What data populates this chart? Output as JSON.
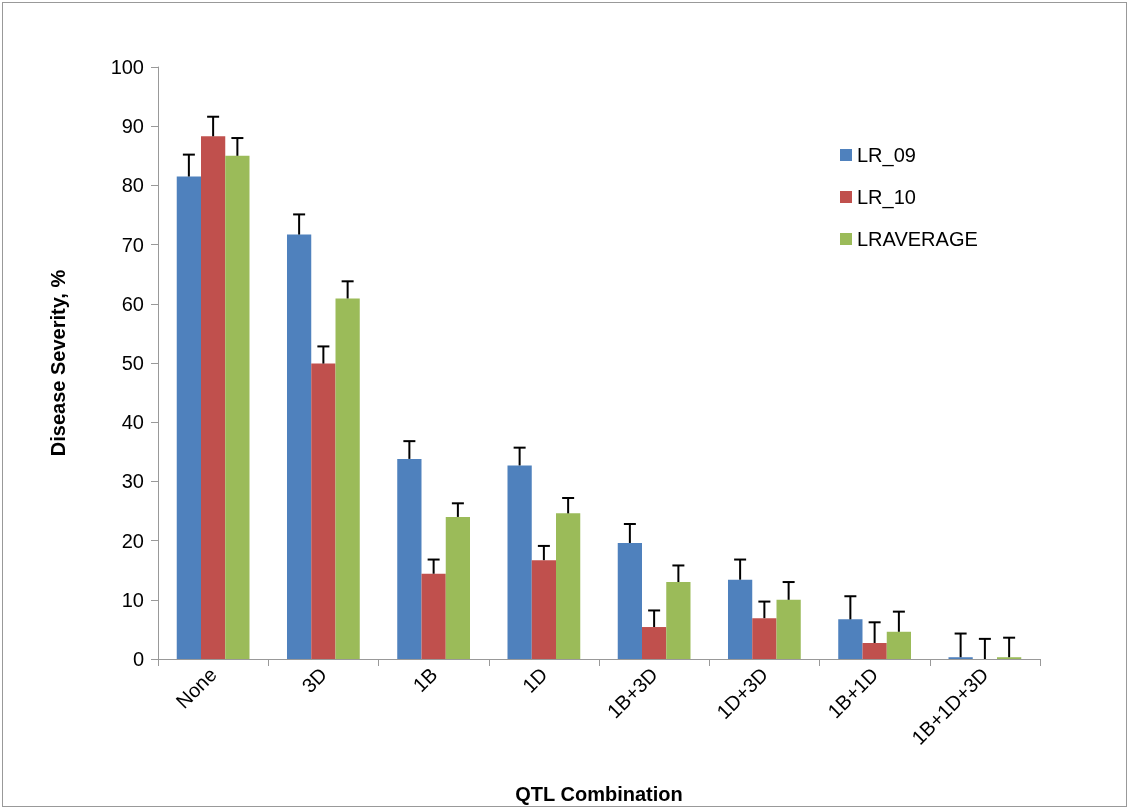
{
  "chart_data": {
    "type": "bar",
    "xlabel": "QTL Combination",
    "ylabel": "Disease Severity, %",
    "categories": [
      "None",
      "3D",
      "1B",
      "1D",
      "1B+3D",
      "1D+3D",
      "1B+1D",
      "1B+1D+3D"
    ],
    "series": [
      {
        "name": "LR_09",
        "color": "#4f81bd",
        "values": [
          81.5,
          71.7,
          33.8,
          32.7,
          19.6,
          13.4,
          6.7,
          0.3
        ],
        "errors": [
          [
            81.5,
            85.2
          ],
          [
            71.7,
            75.1
          ],
          [
            33.8,
            36.8
          ],
          [
            32.7,
            35.7
          ],
          [
            19.6,
            22.8
          ],
          [
            13.4,
            16.8
          ],
          [
            6.7,
            10.6
          ],
          [
            0.3,
            4.3
          ]
        ]
      },
      {
        "name": "LR_10",
        "color": "#c0504d",
        "values": [
          88.3,
          49.9,
          14.4,
          16.7,
          5.4,
          6.9,
          2.7,
          0
        ],
        "errors": [
          [
            88.3,
            91.6
          ],
          [
            49.9,
            52.8
          ],
          [
            14.4,
            16.8
          ],
          [
            16.7,
            19.1
          ],
          [
            5.4,
            8.2
          ],
          [
            6.9,
            9.7
          ],
          [
            2.7,
            6.2
          ],
          [
            0,
            3.4
          ]
        ]
      },
      {
        "name": "LRAVERAGE",
        "color": "#9bbb59",
        "values": [
          85.0,
          60.9,
          24.0,
          24.6,
          13.0,
          10.0,
          4.6,
          0.3
        ],
        "errors": [
          [
            85.0,
            88.0
          ],
          [
            60.9,
            63.8
          ],
          [
            24.0,
            26.3
          ],
          [
            24.6,
            27.2
          ],
          [
            13.0,
            15.8
          ],
          [
            10.0,
            13.0
          ],
          [
            4.6,
            8.0
          ],
          [
            0.3,
            3.6
          ]
        ]
      }
    ],
    "ylim": [
      0,
      100
    ],
    "yticks": [
      0,
      10,
      20,
      30,
      40,
      50,
      60,
      70,
      80,
      90,
      100
    ],
    "grid": false,
    "legend": "top right"
  }
}
